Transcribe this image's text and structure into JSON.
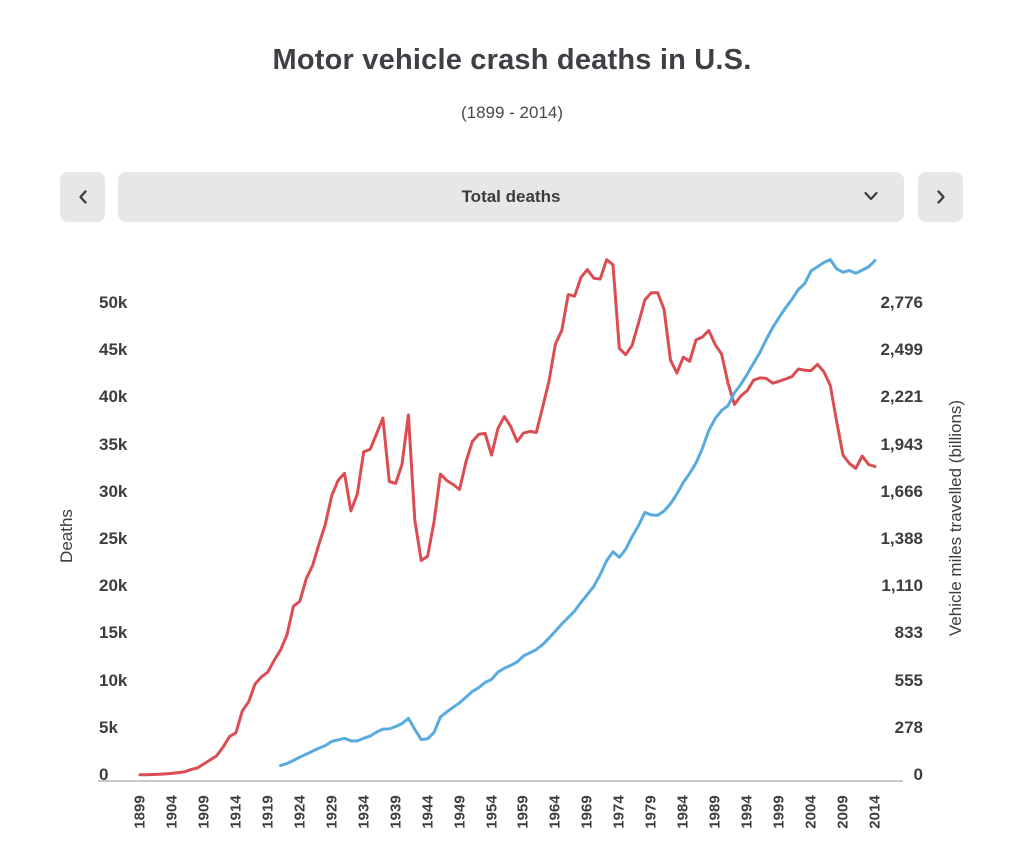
{
  "header": {
    "title": "Motor vehicle crash deaths in U.S.",
    "subtitle": "(1899 - 2014)"
  },
  "controls": {
    "prev_icon": "chevron-left-icon",
    "next_icon": "chevron-right-icon",
    "selector_value": "Total deaths",
    "selector_caret_icon": "chevron-down-icon",
    "button_bg_color": "#e7e7e8",
    "icon_color": "#3f3f3f"
  },
  "chart_data": {
    "type": "line",
    "title": "Motor vehicle crash deaths in U.S.",
    "subtitle": "(1899 - 2014)",
    "grid": false,
    "legend": "none",
    "x_range": [
      1899,
      2014
    ],
    "x_ticks": [
      1899,
      1904,
      1909,
      1914,
      1919,
      1924,
      1929,
      1934,
      1939,
      1944,
      1949,
      1954,
      1959,
      1964,
      1969,
      1974,
      1979,
      1984,
      1989,
      1994,
      1999,
      2004,
      2009,
      2014
    ],
    "left_axis": {
      "label": "Deaths",
      "tick_values": [
        0,
        5000,
        10000,
        15000,
        20000,
        25000,
        30000,
        35000,
        40000,
        45000,
        50000
      ],
      "tick_labels": [
        "0",
        "5k",
        "10k",
        "15k",
        "20k",
        "25k",
        "30k",
        "35k",
        "40k",
        "45k",
        "50k"
      ],
      "range": [
        0,
        55500
      ]
    },
    "right_axis": {
      "label": "Vehicle miles travelled (billions)",
      "tick_values": [
        0,
        278,
        555,
        833,
        1110,
        1388,
        1666,
        1943,
        2221,
        2499,
        2776
      ],
      "tick_labels": [
        "0",
        "278",
        "555",
        "833",
        "1,110",
        "1,388",
        "1,666",
        "1,943",
        "2,221",
        "2,499",
        "2,776"
      ],
      "range": [
        0,
        3081
      ]
    },
    "series": [
      {
        "id": "total-deaths",
        "name": "Total deaths",
        "axis": "left",
        "color": "#db4d52",
        "start_year": 1899,
        "values": [
          26,
          36,
          54,
          79,
          117,
          172,
          252,
          338,
          581,
          751,
          1174,
          1599,
          2043,
          2968,
          4079,
          4468,
          6779,
          7766,
          9630,
          10390,
          10896,
          12155,
          13253,
          14859,
          17870,
          18400,
          20771,
          22194,
          24470,
          26557,
          29592,
          31204,
          31963,
          27979,
          29746,
          34240,
          34494,
          36126,
          37819,
          31083,
          30895,
          32914,
          38142,
          27007,
          22727,
          23165,
          26785,
          31874,
          31193,
          30775,
          30246,
          33186,
          35309,
          36088,
          36190,
          33890,
          36688,
          37965,
          36932,
          35331,
          36223,
          36399,
          36285,
          38980,
          41723,
          45645,
          47089,
          50894,
          50724,
          52725,
          53543,
          52627,
          52542,
          54589,
          54052,
          45196,
          44525,
          45523,
          47878,
          50331,
          51093,
          51091,
          49301,
          43945,
          42589,
          44257,
          43825,
          46087,
          46390,
          47087,
          45582,
          44599,
          41508,
          39250,
          40150,
          40716,
          41817,
          42065,
          42013,
          41501,
          41717,
          41945,
          42196,
          43005,
          42884,
          42836,
          43510,
          42708,
          41259,
          37423,
          33883,
          32999,
          32479,
          33782,
          32894,
          32675
        ]
      },
      {
        "id": "vehicle-miles",
        "name": "Vehicle miles travelled (billions)",
        "axis": "right",
        "color": "#58abdf",
        "start_year": 1921,
        "values": [
          55.0,
          67.7,
          85.0,
          104.8,
          122.3,
          140.7,
          158.4,
          172.9,
          197.7,
          206.3,
          216.1,
          200.5,
          200.6,
          215.6,
          228.6,
          252.1,
          270.1,
          271.2,
          285.4,
          302.2,
          333.6,
          268.2,
          208.2,
          212.7,
          250.2,
          340.9,
          370.9,
          397.9,
          424.5,
          458.2,
          491.1,
          513.6,
          544.4,
          561.9,
          605.4,
          627.8,
          644.4,
          664.7,
          700.5,
          718.8,
          737.4,
          766.7,
          805.3,
          846.3,
          887.8,
          925.9,
          964.0,
          1015.9,
          1061.8,
          1109.7,
          1178.8,
          1259.8,
          1313.1,
          1280.5,
          1327.7,
          1402.4,
          1467.0,
          1544.7,
          1529.1,
          1527.3,
          1552.8,
          1595.0,
          1652.8,
          1720.3,
          1774.2,
          1834.9,
          1921.2,
          2025.9,
          2096.5,
          2144.4,
          2172.2,
          2247.2,
          2296.4,
          2357.6,
          2422.8,
          2486.3,
          2561.7,
          2631.5,
          2691.3,
          2746.9,
          2797.3,
          2855.5,
          2890.2,
          2964.8,
          2989.4,
          3014.1,
          3031.1,
          2976.5,
          2957.4,
          2967.0,
          2950.4,
          2969.4,
          2988.3,
          3025.7
        ]
      }
    ],
    "axis_line_color": "#c8c8c8"
  }
}
